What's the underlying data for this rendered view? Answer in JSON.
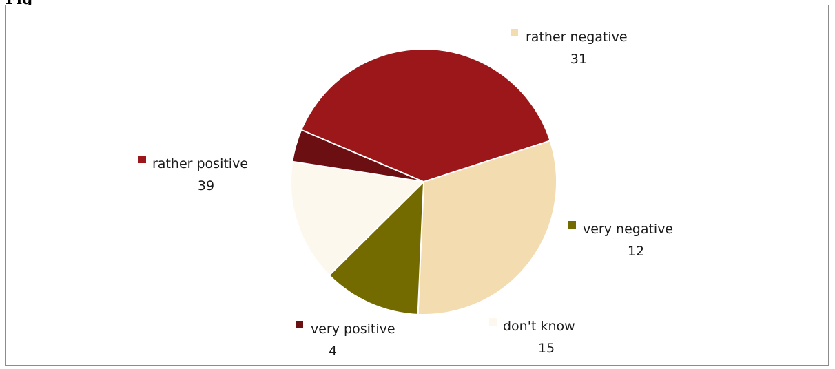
{
  "header": {
    "title_fragment": "Fig"
  },
  "chart_data": {
    "type": "pie",
    "title": "",
    "start_angle_deg": -18,
    "direction": "clockwise",
    "slices": [
      {
        "label": "rather negative",
        "value": 31,
        "color": "#F3DDB0",
        "legend_pos": "top-right"
      },
      {
        "label": "very negative",
        "value": 12,
        "color": "#736A00",
        "legend_pos": "right"
      },
      {
        "label": "don't know",
        "value": 15,
        "color": "#FDF8EE",
        "legend_pos": "bottom-right"
      },
      {
        "label": "very positive",
        "value": 4,
        "color": "#6B0F12",
        "legend_pos": "bottom-left"
      },
      {
        "label": "rather positive",
        "value": 39,
        "color": "#9C1719",
        "legend_pos": "left"
      }
    ],
    "grid": false
  }
}
